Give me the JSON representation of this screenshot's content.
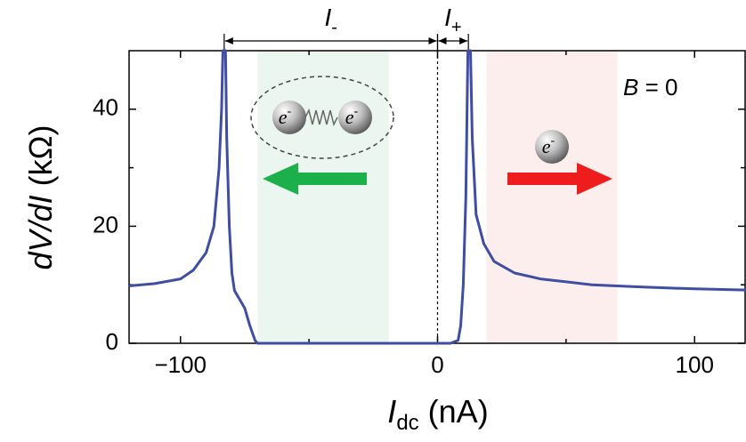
{
  "chart_data": {
    "type": "line",
    "ylabel": {
      "italic": "dV/dI",
      "rest": " (kΩ)"
    },
    "xlabel": {
      "italic": "I",
      "sub": "dc",
      "rest": " (nA)"
    },
    "xlim": [
      -120,
      120
    ],
    "ylim": [
      0,
      50
    ],
    "xticks": [
      {
        "value": -100,
        "label": "−100"
      },
      0,
      100
    ],
    "yticks": [
      0,
      20,
      40
    ],
    "xminor": [
      -50,
      50
    ],
    "yminor": [
      10,
      30
    ],
    "reference_x": 0,
    "regions": [
      {
        "x": [
          -70,
          -19
        ],
        "color": "#eaf6ef"
      },
      {
        "x": [
          19,
          70
        ],
        "color": "#fdeeee"
      }
    ],
    "spans": [
      {
        "label": "I",
        "sub": "-",
        "x": [
          -83,
          0
        ]
      },
      {
        "label": "I",
        "sub": "+",
        "x": [
          0,
          12
        ]
      }
    ],
    "field": {
      "italic": "B",
      "rest": " = 0"
    },
    "electron": {
      "base": "e",
      "sup": "-"
    },
    "series": [
      {
        "name": "dV/dI",
        "color": "#3f4ea3",
        "x": [
          -120,
          -110,
          -100,
          -95,
          -90,
          -87,
          -85,
          -84,
          -83.5,
          -82.5,
          -82,
          -81,
          -80,
          -79,
          -77,
          -75,
          -73,
          -71,
          -70,
          0,
          5,
          8,
          9,
          10,
          11,
          11.8,
          12.8,
          13.5,
          15,
          18,
          22,
          30,
          40,
          60,
          80,
          100,
          120
        ],
        "values": [
          9.8,
          10.2,
          11,
          12.5,
          15.5,
          20,
          30,
          40,
          50,
          50,
          35,
          20,
          12,
          9,
          7.5,
          6,
          3,
          0.5,
          0,
          0,
          0,
          0.5,
          3,
          10,
          25,
          50,
          50,
          35,
          22,
          17,
          14,
          12,
          11,
          10,
          9.6,
          9.3,
          9.1
        ]
      }
    ]
  }
}
